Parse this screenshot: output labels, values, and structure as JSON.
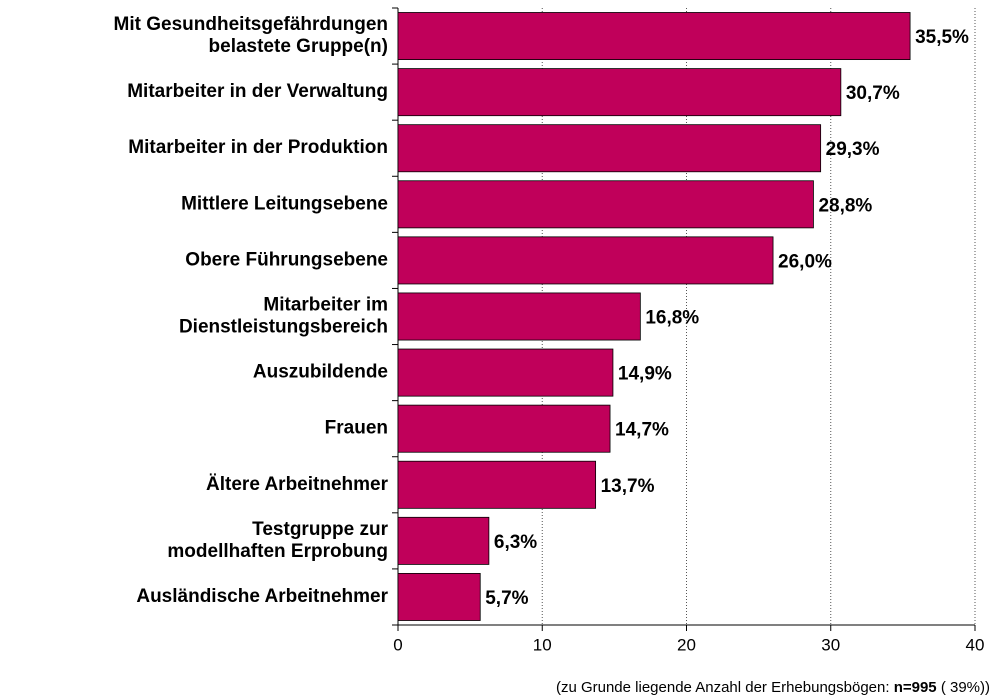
{
  "chart_data": {
    "type": "hbar",
    "categories": [
      "Mit Gesundheitsgefährdungen\nbelastete Gruppe(n)",
      "Mitarbeiter in der Verwaltung",
      "Mitarbeiter in der Produktion",
      "Mittlere Leitungsebene",
      "Obere Führungsebene",
      "Mitarbeiter im\nDienstleistungsbereich",
      "Auszubildende",
      "Frauen",
      "Ältere Arbeitnehmer",
      "Testgruppe zur\nmodellhaften Erprobung",
      "Ausländische Arbeitnehmer"
    ],
    "values": [
      35.5,
      30.7,
      29.3,
      28.8,
      26.0,
      16.8,
      14.9,
      14.7,
      13.7,
      6.3,
      5.7
    ],
    "value_labels": [
      "35,5%",
      "30,7%",
      "29,3%",
      "28,8%",
      "26,0%",
      "16,8%",
      "14,9%",
      "14,7%",
      "13,7%",
      "6,3%",
      "5,7%"
    ],
    "color": "#c0005a",
    "xlim": [
      0,
      40
    ],
    "xticks": [
      0,
      10,
      20,
      30,
      40
    ],
    "grid": true,
    "note": {
      "prefix": "(zu Grunde liegende Anzahl der Erhebungsbögen: ",
      "n": "n=995",
      "suffix": " ( 39%))"
    }
  }
}
